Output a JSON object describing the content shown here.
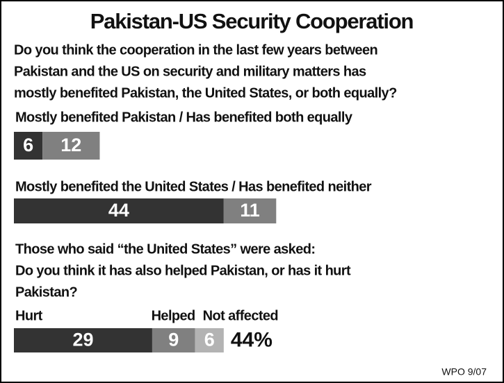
{
  "chart_data": {
    "type": "stacked-bar",
    "title": "Pakistan-US Security Cooperation",
    "question": [
      "Do you think the cooperation in the last few years between",
      "Pakistan and the US on security and military matters has",
      "mostly benefited Pakistan, the United States, or both equally?"
    ],
    "groups": [
      {
        "label": [
          "Mostly benefited Pakistan / Has benefited both equally"
        ],
        "segments": [
          {
            "value": 6,
            "color": "#333333"
          },
          {
            "value": 12,
            "color": "#808080"
          }
        ]
      },
      {
        "label": [
          "Mostly benefited the United States / Has benefited neither"
        ],
        "segments": [
          {
            "value": 44,
            "color": "#333333"
          },
          {
            "value": 11,
            "color": "#808080"
          }
        ]
      },
      {
        "label": [
          "Those who said “the United States” were asked:",
          "Do you think it has also helped Pakistan, or has it hurt",
          "Pakistan?"
        ],
        "segments": [
          {
            "name": "Hurt",
            "value": 29,
            "color": "#333333"
          },
          {
            "name": "Helped",
            "value": 9,
            "color": "#808080"
          },
          {
            "name": "Not affected",
            "value": 6,
            "color": "#b3b3b3"
          }
        ],
        "total_label": "44%"
      }
    ],
    "source": "WPO 9/07"
  }
}
